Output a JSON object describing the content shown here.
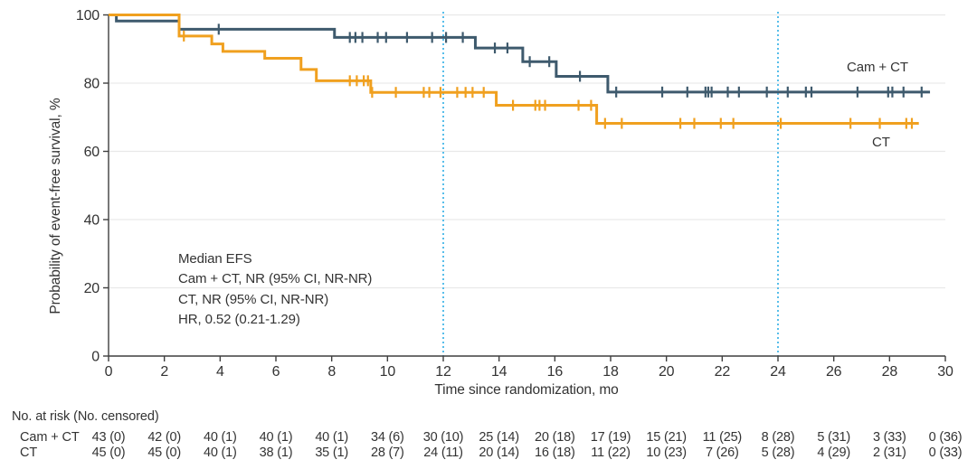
{
  "chart_data": {
    "type": "line",
    "subtype": "kaplan-meier-step",
    "title": "",
    "xlabel": "Time since randomization, mo",
    "ylabel": "Probability of event-free survival, %",
    "xlim": [
      0,
      30
    ],
    "ylim": [
      0,
      100
    ],
    "xticks": [
      0,
      2,
      4,
      6,
      8,
      10,
      12,
      14,
      16,
      18,
      20,
      22,
      24,
      26,
      28,
      30
    ],
    "yticks": [
      0,
      20,
      40,
      60,
      80,
      100
    ],
    "grid": "horizontal",
    "reference_lines_x": [
      12,
      24
    ],
    "colors": {
      "cam_ct": "#3e5a6d",
      "ct": "#f0a01f",
      "reference_line": "#45b7e8",
      "grid": "#e9e9e9",
      "axis": "#3f3f3f",
      "text": "#333333"
    },
    "series": [
      {
        "name": "Cam + CT",
        "color": "#3e5a6d",
        "steps": [
          [
            0,
            100
          ],
          [
            0.28,
            98.2
          ],
          [
            2.53,
            95.8
          ],
          [
            8.1,
            93.4
          ],
          [
            13.15,
            90.3
          ],
          [
            14.85,
            86.3
          ],
          [
            16.05,
            82.0
          ],
          [
            17.9,
            77.4
          ]
        ],
        "end": 29.45,
        "censors": [
          3.95,
          8.65,
          8.85,
          9.1,
          9.65,
          9.95,
          10.7,
          11.6,
          12.1,
          12.7,
          13.85,
          14.3,
          15.1,
          15.8,
          16.9,
          18.2,
          19.85,
          20.75,
          21.4,
          21.5,
          21.62,
          22.2,
          22.6,
          23.6,
          24.35,
          25.0,
          25.2,
          26.85,
          27.95,
          28.1,
          28.5,
          29.15
        ]
      },
      {
        "name": "CT",
        "color": "#f0a01f",
        "steps": [
          [
            0,
            100
          ],
          [
            2.53,
            93.8
          ],
          [
            3.7,
            91.5
          ],
          [
            4.1,
            89.3
          ],
          [
            5.6,
            87.3
          ],
          [
            6.9,
            84.0
          ],
          [
            7.45,
            80.7
          ],
          [
            9.4,
            77.3
          ],
          [
            13.9,
            73.5
          ],
          [
            17.5,
            68.2
          ]
        ],
        "end": 29.05,
        "censors": [
          2.7,
          8.65,
          8.9,
          9.15,
          9.3,
          9.45,
          10.3,
          11.3,
          11.5,
          11.9,
          12.5,
          12.8,
          13.05,
          13.45,
          14.5,
          15.3,
          15.45,
          15.65,
          16.85,
          17.3,
          17.8,
          18.4,
          20.5,
          21.0,
          21.95,
          22.4,
          24.1,
          26.6,
          27.65,
          28.6,
          28.8
        ]
      }
    ],
    "annotation": [
      "Median EFS",
      "Cam + CT, NR (95% CI, NR-NR)",
      "CT, NR (95% CI, NR-NR)",
      "HR, 0.52 (0.21-1.29)"
    ],
    "risk_table": {
      "header": "No. at risk (No. censored)",
      "times": [
        0,
        2,
        4,
        6,
        8,
        10,
        12,
        14,
        16,
        18,
        20,
        22,
        24,
        26,
        28,
        30
      ],
      "rows": [
        {
          "label": "Cam + CT",
          "values": [
            "43 (0)",
            "42 (0)",
            "40 (1)",
            "40 (1)",
            "40 (1)",
            "34 (6)",
            "30 (10)",
            "25 (14)",
            "20 (18)",
            "17 (19)",
            "15 (21)",
            "11 (25)",
            "8 (28)",
            "5 (31)",
            "3 (33)",
            "0 (36)"
          ]
        },
        {
          "label": "CT",
          "values": [
            "45 (0)",
            "45 (0)",
            "40 (1)",
            "38 (1)",
            "35 (1)",
            "28 (7)",
            "24 (11)",
            "20 (14)",
            "16 (18)",
            "11 (22)",
            "10 (23)",
            "7 (26)",
            "5 (28)",
            "4 (29)",
            "2 (31)",
            "0 (33)"
          ]
        }
      ]
    }
  }
}
